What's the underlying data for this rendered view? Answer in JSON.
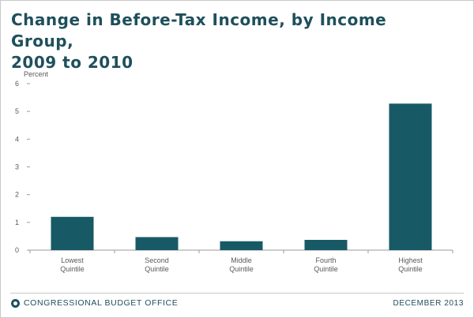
{
  "title_lines": [
    "Change in Before-Tax Income, by Income Group,",
    "2009 to 2010"
  ],
  "footer": {
    "org": "CONGRESSIONAL BUDGET OFFICE",
    "date": "DECEMBER 2013"
  },
  "colors": {
    "bar": "#175a66",
    "title": "#1f4f5c",
    "axis_text": "#5a5a5a",
    "axis_line": "#9a9a9a"
  },
  "chart_data": {
    "type": "bar",
    "title": "Change in Before-Tax Income, by Income Group, 2009 to 2010",
    "ylabel": "Percent",
    "xlabel": "",
    "categories": [
      [
        "Lowest",
        "Quintile"
      ],
      [
        "Second",
        "Quintile"
      ],
      [
        "Middle",
        "Quintile"
      ],
      [
        "Fourth",
        "Quintile"
      ],
      [
        "Highest",
        "Quintile"
      ]
    ],
    "values": [
      1.2,
      0.47,
      0.32,
      0.37,
      5.28
    ],
    "ylim": [
      0,
      6
    ],
    "yticks": [
      0,
      1,
      2,
      3,
      4,
      5,
      6
    ],
    "grid": false,
    "legend": "none"
  }
}
